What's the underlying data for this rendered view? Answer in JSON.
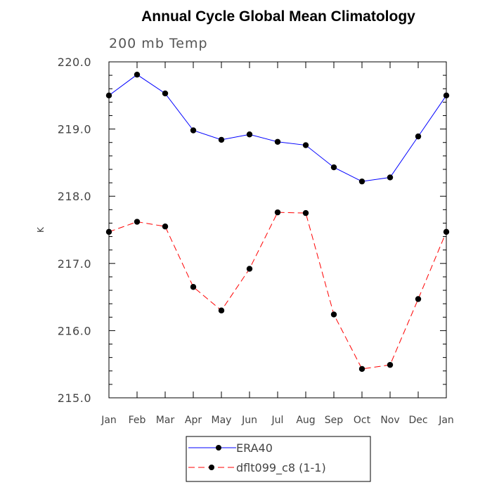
{
  "chart_data": {
    "type": "line",
    "title": "Annual Cycle Global Mean Climatology",
    "subtitle": "200 mb Temp",
    "xlabel": "",
    "ylabel": "K",
    "categories": [
      "Jan",
      "Feb",
      "Mar",
      "Apr",
      "May",
      "Jun",
      "Jul",
      "Aug",
      "Sep",
      "Oct",
      "Nov",
      "Dec",
      "Jan"
    ],
    "ylim": [
      215.0,
      220.0
    ],
    "yticks": [
      "215.0",
      "216.0",
      "217.0",
      "218.0",
      "219.0",
      "220.0"
    ],
    "grid": false,
    "legend_position": "bottom-center",
    "series": [
      {
        "name": "ERA40",
        "color": "#0000ff",
        "dash": "solid",
        "marker": "filled-circle",
        "values": [
          219.5,
          219.81,
          219.53,
          218.98,
          218.84,
          218.92,
          218.81,
          218.76,
          218.43,
          218.22,
          218.28,
          218.89,
          219.5
        ]
      },
      {
        "name": "dflt099_c8 (1-1)",
        "color": "#ff0000",
        "dash": "dashed",
        "marker": "filled-circle",
        "values": [
          217.47,
          217.62,
          217.55,
          216.65,
          216.3,
          216.92,
          217.76,
          217.75,
          216.24,
          215.43,
          215.49,
          216.47,
          217.47
        ]
      }
    ]
  }
}
